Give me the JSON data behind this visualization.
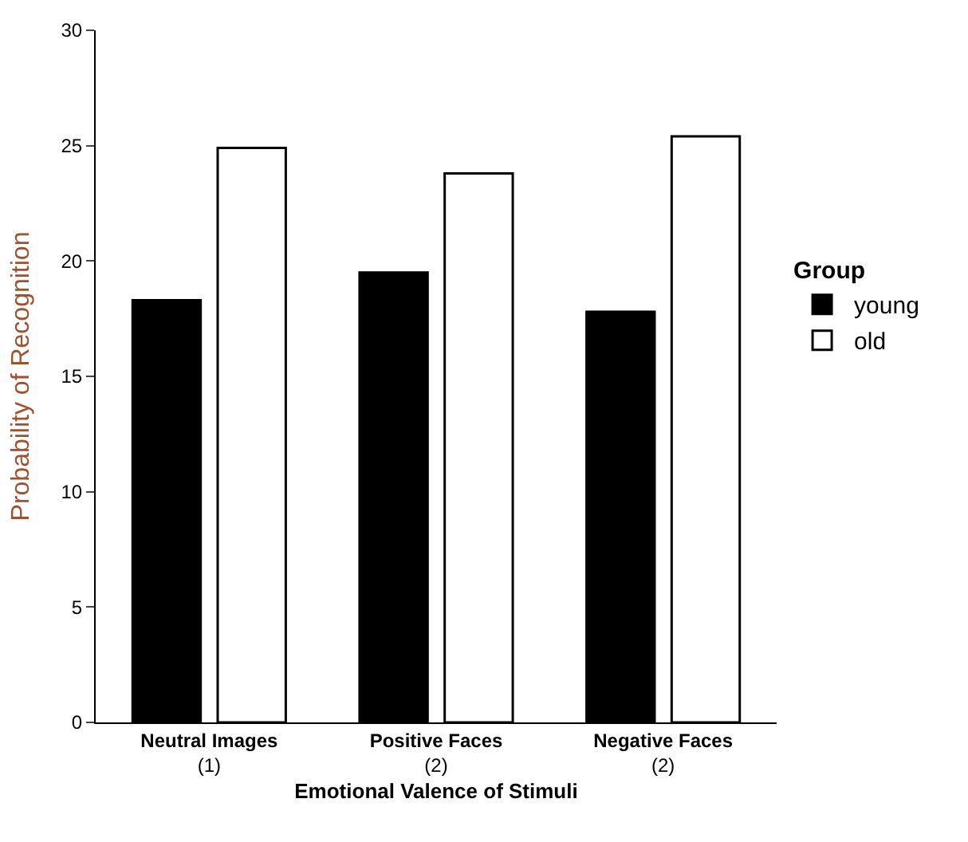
{
  "chart_data": {
    "type": "bar",
    "xlabel": "Emotional Valence of Stimuli",
    "ylabel": "Probability of Recognition",
    "legend_title": "Group",
    "categories": [
      "Neutral Images\n(1)",
      "Positive Faces\n(2)",
      "Negative Faces\n(2)"
    ],
    "series": [
      {
        "name": "young",
        "color": "#000000",
        "values": [
          18.3,
          19.5,
          17.8
        ]
      },
      {
        "name": "old",
        "color": "#ffffff",
        "values": [
          24.9,
          23.8,
          25.4
        ]
      }
    ],
    "ylim": [
      0,
      30
    ],
    "yticks": [
      0,
      5,
      10,
      15,
      20,
      25,
      30
    ],
    "legend": "right"
  }
}
